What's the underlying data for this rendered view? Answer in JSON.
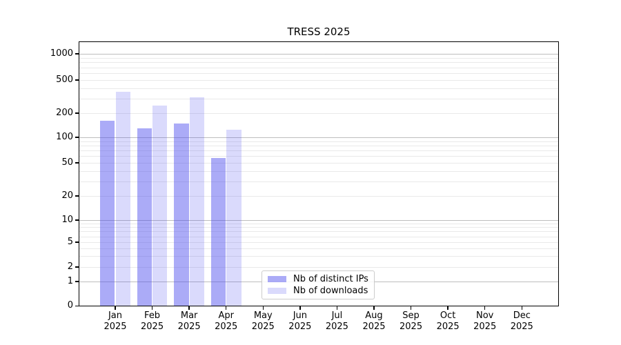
{
  "title": "TRESS 2025",
  "colors": {
    "distinct_ips": "rgba(68,68,238,0.45)",
    "downloads": "rgba(68,68,238,0.20)",
    "grid_major": "#bdbdbd",
    "grid_minor": "#e9e9e9"
  },
  "legend": {
    "items": [
      {
        "label": "Nb of distinct IPs",
        "color": "rgba(68,68,238,0.45)"
      },
      {
        "label": "Nb of downloads",
        "color": "rgba(68,68,238,0.20)"
      }
    ]
  },
  "chart_data": {
    "type": "bar",
    "title": "TRESS 2025",
    "categories": [
      "Jan",
      "Feb",
      "Mar",
      "Apr",
      "May",
      "Jun",
      "Jul",
      "Aug",
      "Sep",
      "Oct",
      "Nov",
      "Dec"
    ],
    "category_year": "2025",
    "series": [
      {
        "name": "Nb of distinct IPs",
        "color": "rgba(68,68,238,0.45)",
        "values": [
          162,
          130,
          149,
          57,
          null,
          null,
          null,
          null,
          null,
          null,
          null,
          null
        ]
      },
      {
        "name": "Nb of downloads",
        "color": "rgba(68,68,238,0.20)",
        "values": [
          360,
          248,
          310,
          125,
          null,
          null,
          null,
          null,
          null,
          null,
          null,
          null
        ]
      }
    ],
    "xlabel": "",
    "ylabel": "",
    "y_ticks": [
      0,
      1,
      2,
      5,
      10,
      20,
      50,
      100,
      200,
      500,
      1000
    ],
    "y_scale": "symlog-like",
    "ylim": [
      0,
      1000
    ],
    "grid": true,
    "legend_position": "lower-center-inside"
  }
}
